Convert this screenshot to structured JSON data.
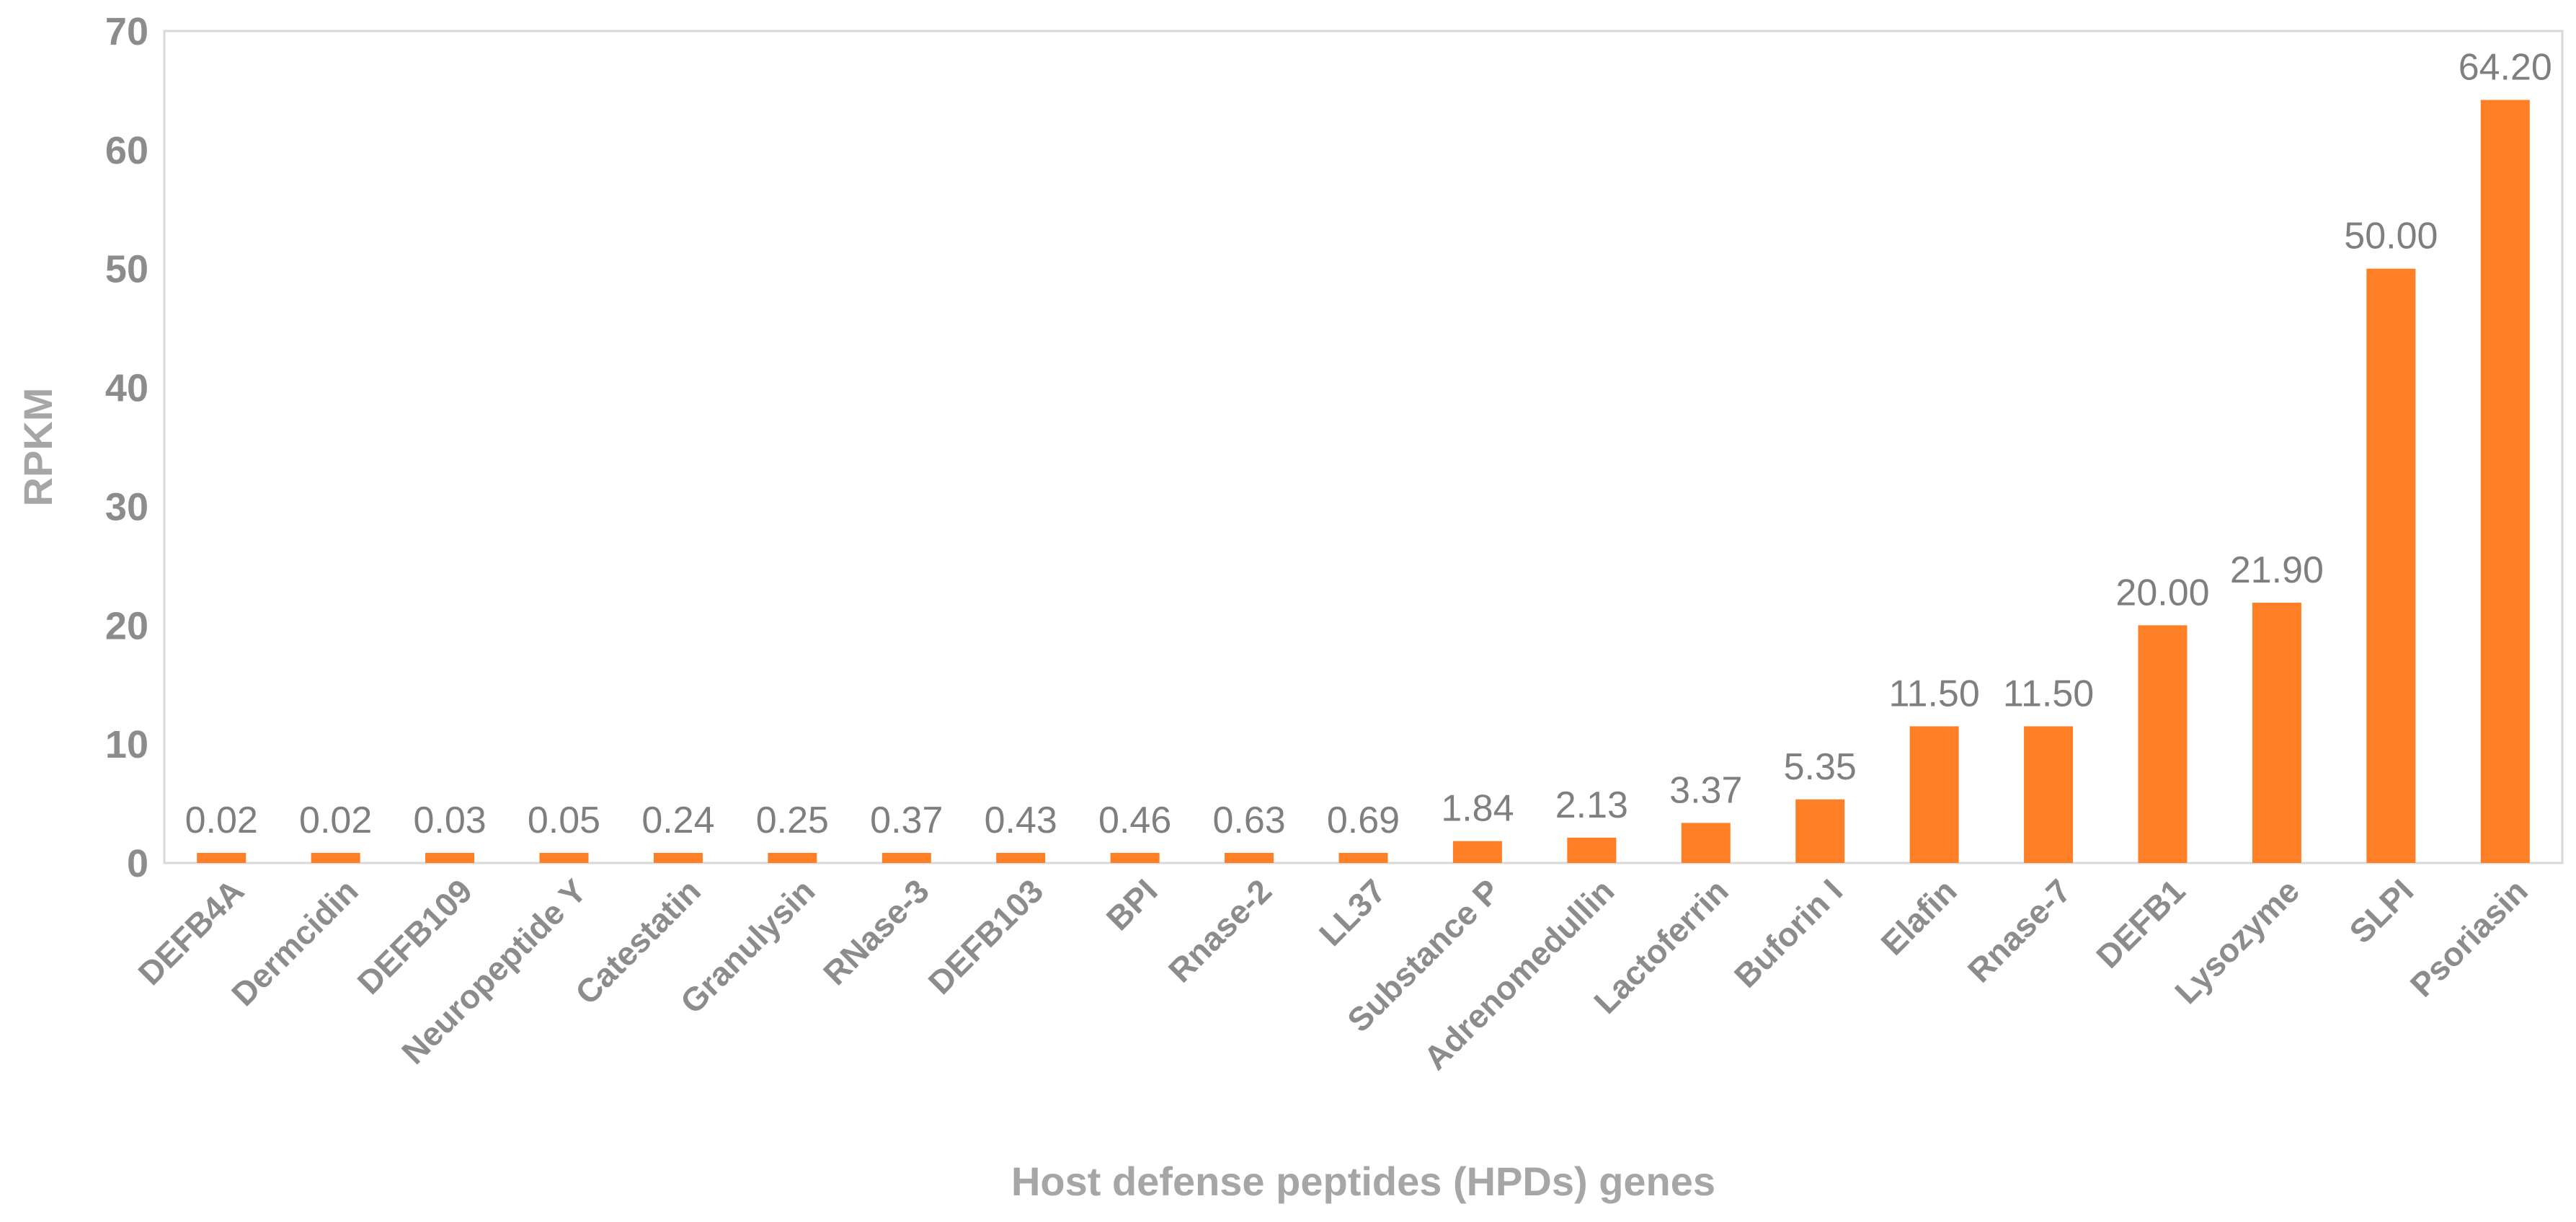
{
  "chart_data": {
    "type": "bar",
    "title": "",
    "xlabel": "Host defense peptides (HPDs) genes",
    "ylabel": "RPKM",
    "ylim": [
      0,
      70
    ],
    "yticks": [
      0,
      10,
      20,
      30,
      40,
      50,
      60,
      70
    ],
    "grid": false,
    "bar_color": "#ff7f27",
    "categories": [
      "DEFB4A",
      "Dermcidin",
      "DEFB109",
      "Neuropeptide Y",
      "Catestatin",
      "Granulysin",
      "RNase-3",
      "DEFB103",
      "BPI",
      "Rnase-2",
      "LL37",
      "Substance P",
      "Adrenomedullin",
      "Lactoferrin",
      "Buforin I",
      "Elafin",
      "Rnase-7",
      "DEFB1",
      "Lysozyme",
      "SLPI",
      "Psoriasin"
    ],
    "values": [
      0.02,
      0.02,
      0.03,
      0.05,
      0.24,
      0.25,
      0.37,
      0.43,
      0.46,
      0.63,
      0.69,
      1.84,
      2.13,
      3.37,
      5.35,
      11.5,
      11.5,
      20.0,
      21.9,
      50.0,
      64.2
    ],
    "data_labels": [
      "0.02",
      "0.02",
      "0.03",
      "0.05",
      "0.24",
      "0.25",
      "0.37",
      "0.43",
      "0.46",
      "0.63",
      "0.69",
      "1.84",
      "2.13",
      "3.37",
      "5.35",
      "11.50",
      "11.50",
      "20.00",
      "21.90",
      "50.00",
      "64.20"
    ]
  }
}
